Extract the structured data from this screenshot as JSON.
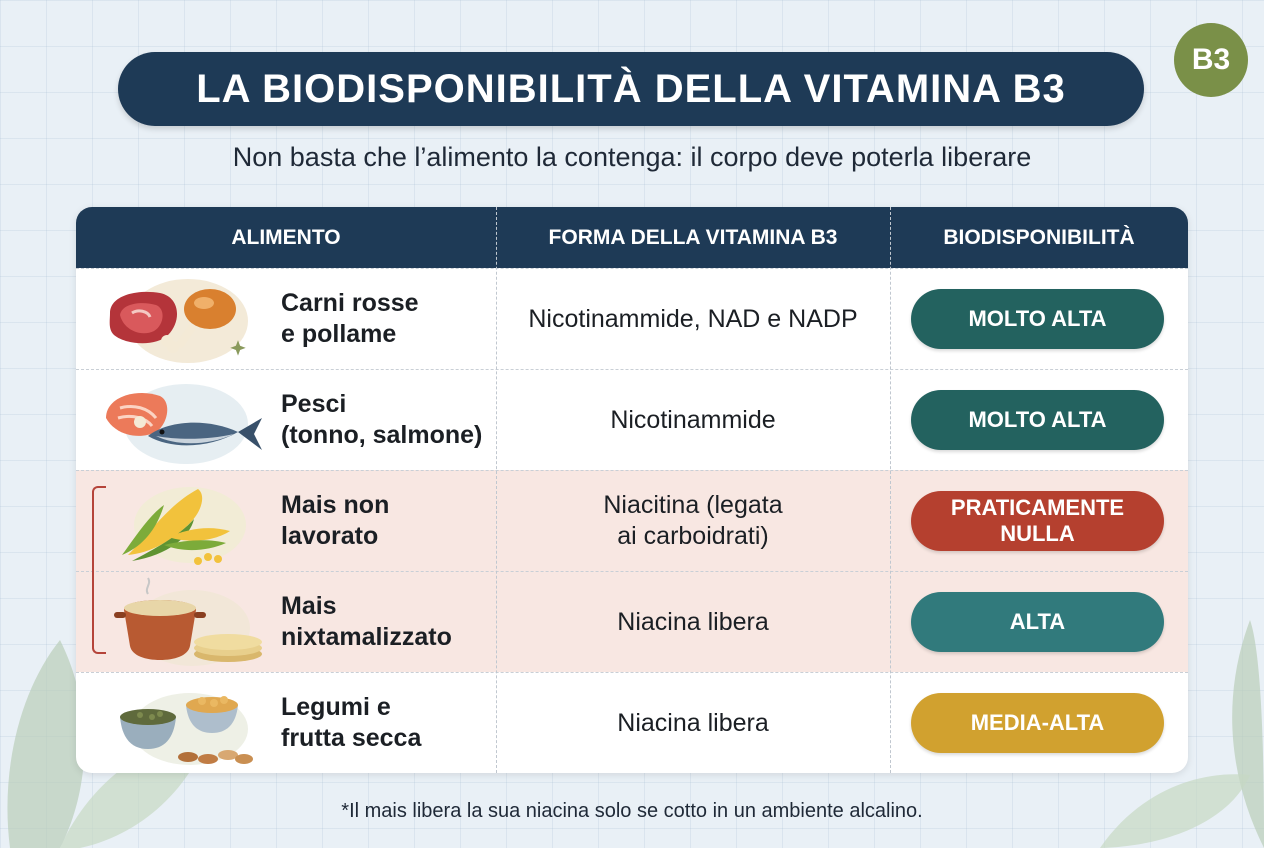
{
  "header": {
    "title": "LA BIODISPONIBILITÀ DELLA VITAMINA B3",
    "badge": "B3",
    "subtitle": "Non basta che l’alimento la contenga: il corpo deve poterla liberare"
  },
  "table": {
    "columns": [
      "ALIMENTO",
      "FORMA DELLA VITAMINA B3",
      "BIODISPONIBILITÀ"
    ],
    "rows": [
      {
        "food_line1": "Carni rosse",
        "food_line2": "e pollame",
        "form_line1": "Nicotinammide, NAD e NADP",
        "form_line2": "",
        "bio_line1": "MOLTO ALTA",
        "bio_line2": "",
        "color": "#23625f",
        "icon": "meat-icon"
      },
      {
        "food_line1": "Pesci",
        "food_line2": "(tonno, salmone)",
        "form_line1": "Nicotinammide",
        "form_line2": "",
        "bio_line1": "MOLTO ALTA",
        "bio_line2": "",
        "color": "#23625f",
        "icon": "fish-icon"
      },
      {
        "food_line1": "Mais non",
        "food_line2": "lavorato",
        "form_line1": "Niacitina (legata",
        "form_line2": "ai carboidrati)",
        "bio_line1": "PRATICAMENTE",
        "bio_line2": "NULLA",
        "color": "#b5402f",
        "icon": "corn-icon"
      },
      {
        "food_line1": "Mais",
        "food_line2": "nixtamalizzato",
        "form_line1": "Niacina libera",
        "form_line2": "",
        "bio_line1": "ALTA",
        "bio_line2": "",
        "color": "#317a7c",
        "icon": "pot-tortilla-icon"
      },
      {
        "food_line1": "Legumi e",
        "food_line2": "frutta secca",
        "form_line1": "Niacina libera",
        "form_line2": "",
        "bio_line1": "MEDIA-ALTA",
        "bio_line2": "",
        "color": "#d1a12f",
        "icon": "legumes-nuts-icon"
      }
    ]
  },
  "footnote": "*Il mais libera la sua niacina solo se cotto in un ambiente alcalino.",
  "colors": {
    "navy": "#1e3a56",
    "badge": "#7a9048",
    "highlight": "#f8e7e2"
  }
}
